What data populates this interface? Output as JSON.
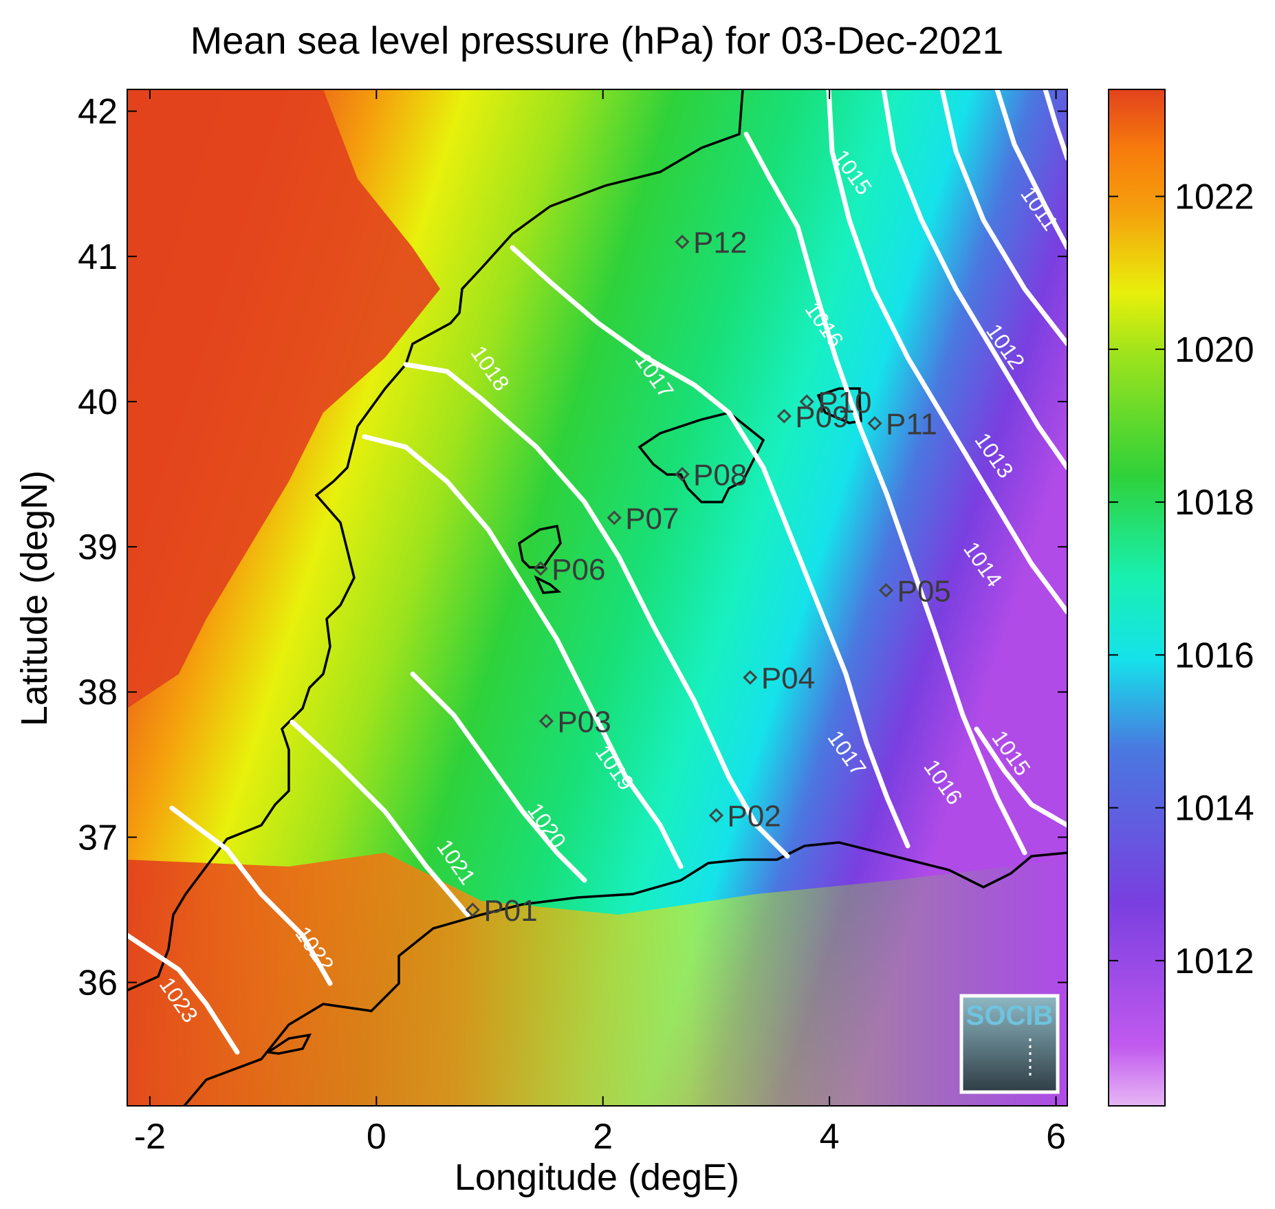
{
  "title": "Mean sea level pressure (hPa) for 03-Dec-2021",
  "xlabel": "Longitude (degE)",
  "ylabel": "Latitude (degN)",
  "logo_text": "SOCIB",
  "colors": {
    "high": "#e2421d",
    "orange": "#f77c0c",
    "yellow": "#e8f00c",
    "green": "#2fd13a",
    "teal": "#18f0b0",
    "cyan": "#15e8ea",
    "blue": "#4a78e0",
    "purple": "#7a3fe0",
    "lavender": "#e7b6f5",
    "contour": "#ffffff",
    "coast": "#000000",
    "marker": "#444444"
  },
  "map_extent": {
    "lon": [
      -2.2,
      6.1
    ],
    "lat": [
      35.15,
      42.15
    ]
  },
  "x_ticks": [
    {
      "v": -2,
      "label": "-2"
    },
    {
      "v": 0,
      "label": "0"
    },
    {
      "v": 2,
      "label": "2"
    },
    {
      "v": 4,
      "label": "4"
    },
    {
      "v": 6,
      "label": "6"
    }
  ],
  "y_ticks": [
    {
      "v": 36,
      "label": "36"
    },
    {
      "v": 37,
      "label": "37"
    },
    {
      "v": 38,
      "label": "38"
    },
    {
      "v": 39,
      "label": "39"
    },
    {
      "v": 40,
      "label": "40"
    },
    {
      "v": 41,
      "label": "41"
    },
    {
      "v": 42,
      "label": "42"
    }
  ],
  "colorbar": {
    "range": [
      1010.1,
      1023.4
    ],
    "ticks": [
      {
        "v": 1012,
        "label": "1012"
      },
      {
        "v": 1014,
        "label": "1014"
      },
      {
        "v": 1016,
        "label": "1016"
      },
      {
        "v": 1018,
        "label": "1018"
      },
      {
        "v": 1020,
        "label": "1020"
      },
      {
        "v": 1022,
        "label": "1022"
      }
    ]
  },
  "stations": [
    {
      "id": "P01",
      "lon": 0.85,
      "lat": 36.5
    },
    {
      "id": "P02",
      "lon": 3.0,
      "lat": 37.15
    },
    {
      "id": "P03",
      "lon": 1.5,
      "lat": 37.8
    },
    {
      "id": "P04",
      "lon": 3.3,
      "lat": 38.1
    },
    {
      "id": "P05",
      "lon": 4.5,
      "lat": 38.7
    },
    {
      "id": "P06",
      "lon": 1.45,
      "lat": 38.85
    },
    {
      "id": "P07",
      "lon": 2.1,
      "lat": 39.2
    },
    {
      "id": "P08",
      "lon": 2.7,
      "lat": 39.5
    },
    {
      "id": "P09",
      "lon": 3.6,
      "lat": 39.9
    },
    {
      "id": "P10",
      "lon": 3.8,
      "lat": 40.0
    },
    {
      "id": "P11",
      "lon": 4.4,
      "lat": 39.85
    },
    {
      "id": "P12",
      "lon": 2.7,
      "lat": 41.1
    }
  ],
  "contour_labels": [
    {
      "text": "1011",
      "lon": 5.8,
      "lat": 41.3
    },
    {
      "text": "1012",
      "lon": 5.5,
      "lat": 40.35
    },
    {
      "text": "1013",
      "lon": 5.4,
      "lat": 39.6
    },
    {
      "text": "1014",
      "lon": 5.3,
      "lat": 38.85
    },
    {
      "text": "1015",
      "lon": 4.15,
      "lat": 41.55
    },
    {
      "text": "1015",
      "lon": 5.55,
      "lat": 37.55
    },
    {
      "text": "1016",
      "lon": 3.9,
      "lat": 40.5
    },
    {
      "text": "1016",
      "lon": 4.95,
      "lat": 37.35
    },
    {
      "text": "1017",
      "lon": 2.4,
      "lat": 40.15
    },
    {
      "text": "1017",
      "lon": 4.1,
      "lat": 37.55
    },
    {
      "text": "1018",
      "lon": 0.95,
      "lat": 40.2
    },
    {
      "text": "1019",
      "lon": 2.05,
      "lat": 37.45
    },
    {
      "text": "1020",
      "lon": 1.45,
      "lat": 37.05
    },
    {
      "text": "1021",
      "lon": 0.65,
      "lat": 36.8
    },
    {
      "text": "1022",
      "lon": -0.6,
      "lat": 36.2
    },
    {
      "text": "1023",
      "lon": -1.8,
      "lat": 35.85
    }
  ]
}
